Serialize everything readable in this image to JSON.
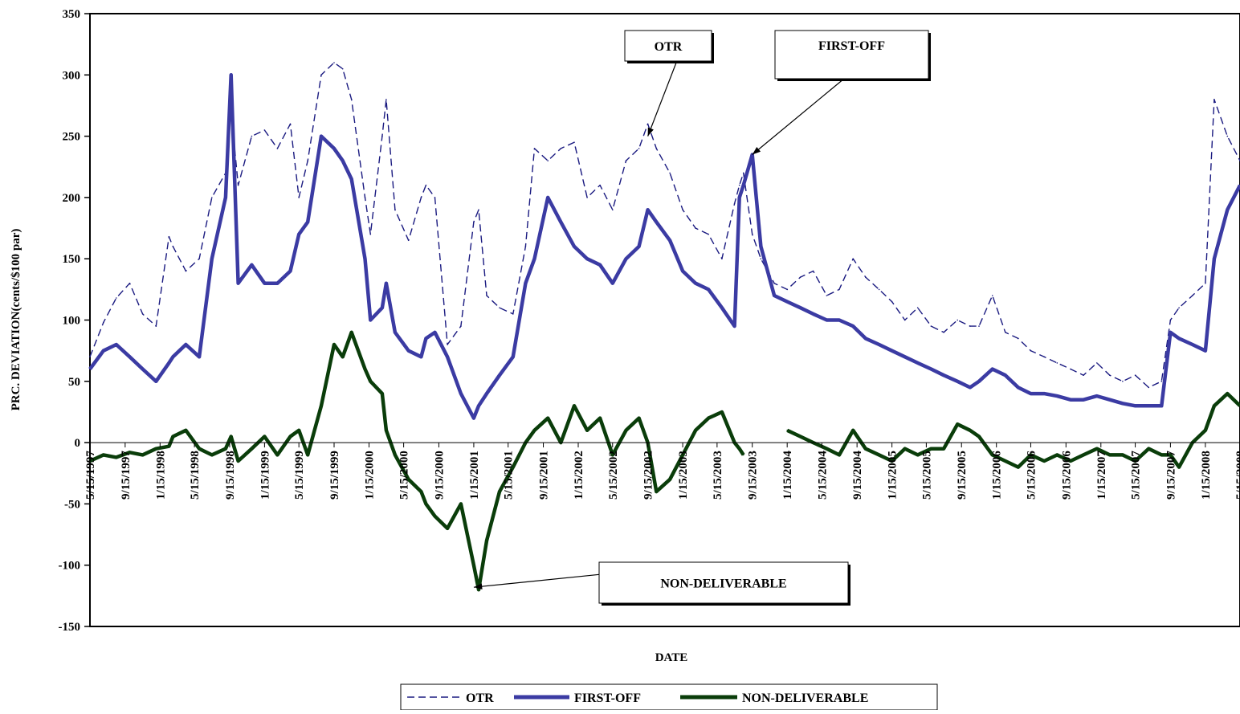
{
  "chart_data": {
    "type": "line",
    "title": "",
    "xlabel": "DATE",
    "ylabel": "PRC. DEVIATION(cents/$100 par)",
    "ylim": [
      -150,
      350
    ],
    "yticks": [
      350,
      300,
      250,
      200,
      150,
      100,
      50,
      0,
      -50,
      -100,
      -150
    ],
    "x_start": "5/15/1997",
    "x_end": "5/15/2008",
    "xtick_labels": [
      "5/15/1997",
      "9/15/1997",
      "1/15/1998",
      "5/15/1998",
      "9/15/1998",
      "1/15/1999",
      "5/15/1999",
      "9/15/1999",
      "1/15/2000",
      "5/15/2000",
      "9/15/2000",
      "1/15/2001",
      "5/15/2001",
      "9/15/2001",
      "1/15/2002",
      "5/15/2002",
      "9/15/2002",
      "1/15/2003",
      "5/15/2003",
      "9/15/2003",
      "1/15/2004",
      "5/15/2004",
      "9/15/2004",
      "1/15/2005",
      "5/15/2005",
      "9/15/2005",
      "1/15/2006",
      "5/15/2006",
      "9/15/2006",
      "1/15/2007",
      "5/15/2007",
      "9/15/2007",
      "1/15/2008",
      "5/15/2008"
    ],
    "grid": false,
    "legend_position": "bottom",
    "series": [
      {
        "name": "OTR",
        "style": "dashed",
        "color": "#1a1a80",
        "x": [
          "5/15/1997",
          "7/1/1997",
          "8/15/1997",
          "10/1/1997",
          "11/15/1997",
          "1/1/1998",
          "2/15/1998",
          "3/1/1998",
          "4/15/1998",
          "6/1/1998",
          "7/15/1998",
          "9/1/1998",
          "9/20/1998",
          "10/15/1998",
          "12/1/1998",
          "1/15/1999",
          "3/1/1999",
          "4/15/1999",
          "5/15/1999",
          "6/15/1999",
          "8/1/1999",
          "9/15/1999",
          "10/15/1999",
          "11/15/1999",
          "1/1/2000",
          "1/20/2000",
          "3/1/2000",
          "3/15/2000",
          "4/15/2000",
          "6/1/2000",
          "7/15/2000",
          "8/1/2000",
          "9/1/2000",
          "10/15/2000",
          "12/1/2000",
          "1/15/2001",
          "2/1/2001",
          "3/1/2001",
          "4/15/2001",
          "6/1/2001",
          "7/15/2001",
          "8/15/2001",
          "10/1/2001",
          "11/15/2001",
          "1/1/2002",
          "2/15/2002",
          "4/1/2002",
          "5/15/2002",
          "7/1/2002",
          "8/15/2002",
          "9/15/2002",
          "10/15/2002",
          "12/1/2002",
          "1/15/2003",
          "3/1/2003",
          "4/15/2003",
          "6/1/2003",
          "7/15/2003",
          "8/1/2003",
          "8/15/2003",
          "9/15/2003",
          "10/15/2003",
          "12/1/2003",
          "1/15/2004",
          "3/1/2004",
          "4/15/2004",
          "6/1/2004",
          "7/15/2004",
          "9/1/2004",
          "10/15/2004",
          "12/1/2004",
          "1/15/2005",
          "3/1/2005",
          "4/15/2005",
          "6/1/2005",
          "7/15/2005",
          "9/1/2005",
          "10/15/2005",
          "11/15/2005",
          "1/1/2006",
          "2/15/2006",
          "4/1/2006",
          "5/15/2006",
          "7/1/2006",
          "8/15/2006",
          "10/1/2006",
          "11/15/2006",
          "1/1/2007",
          "2/15/2007",
          "4/1/2007",
          "5/15/2007",
          "7/1/2007",
          "8/15/2007",
          "9/15/2007",
          "10/15/2007",
          "12/1/2007",
          "1/15/2008",
          "2/15/2008",
          "4/1/2008",
          "5/15/2008"
        ],
        "values": [
          70,
          98,
          118,
          130,
          105,
          95,
          168,
          160,
          140,
          150,
          200,
          220,
          270,
          210,
          250,
          255,
          240,
          260,
          200,
          230,
          300,
          310,
          305,
          280,
          200,
          170,
          250,
          280,
          190,
          165,
          200,
          210,
          200,
          80,
          95,
          180,
          190,
          120,
          110,
          105,
          160,
          240,
          230,
          240,
          245,
          200,
          210,
          190,
          230,
          240,
          260,
          240,
          220,
          190,
          175,
          170,
          150,
          195,
          210,
          220,
          170,
          150,
          130,
          125,
          135,
          140,
          120,
          125,
          150,
          135,
          125,
          115,
          100,
          110,
          95,
          90,
          100,
          95,
          95,
          120,
          90,
          85,
          75,
          70,
          65,
          60,
          55,
          65,
          55,
          50,
          55,
          45,
          50,
          100,
          110,
          120,
          130,
          280,
          250,
          230
        ]
      },
      {
        "name": "FIRST-OFF",
        "style": "solid",
        "color": "#3b3ba3",
        "x": [
          "5/15/1997",
          "7/1/1997",
          "8/15/1997",
          "10/1/1997",
          "11/15/1997",
          "1/1/1998",
          "2/15/1998",
          "3/1/1998",
          "4/15/1998",
          "6/1/1998",
          "7/15/1998",
          "9/1/1998",
          "9/20/1998",
          "10/15/1998",
          "12/1/1998",
          "1/15/1999",
          "3/1/1999",
          "4/15/1999",
          "5/15/1999",
          "6/15/1999",
          "8/1/1999",
          "9/15/1999",
          "10/15/1999",
          "11/15/1999",
          "1/1/2000",
          "1/20/2000",
          "3/1/2000",
          "3/15/2000",
          "4/15/2000",
          "6/1/2000",
          "7/15/2000",
          "8/1/2000",
          "9/1/2000",
          "10/15/2000",
          "12/1/2000",
          "1/15/2001",
          "2/1/2001",
          "3/1/2001",
          "4/15/2001",
          "6/1/2001",
          "7/15/2001",
          "8/15/2001",
          "10/1/2001",
          "11/15/2001",
          "1/1/2002",
          "2/15/2002",
          "4/1/2002",
          "5/15/2002",
          "7/1/2002",
          "8/15/2002",
          "9/15/2002",
          "10/15/2002",
          "12/1/2002",
          "1/15/2003",
          "3/1/2003",
          "4/15/2003",
          "6/1/2003",
          "7/15/2003",
          "8/1/2003",
          "8/15/2003",
          "9/15/2003",
          "10/15/2003",
          "12/1/2003",
          "1/15/2004",
          "3/1/2004",
          "4/15/2004",
          "6/1/2004",
          "7/15/2004",
          "9/1/2004",
          "10/15/2004",
          "12/1/2004",
          "1/15/2005",
          "3/1/2005",
          "4/15/2005",
          "6/1/2005",
          "7/15/2005",
          "9/1/2005",
          "10/15/2005",
          "11/15/2005",
          "1/1/2006",
          "2/15/2006",
          "4/1/2006",
          "5/15/2006",
          "7/1/2006",
          "8/15/2006",
          "10/1/2006",
          "11/15/2006",
          "1/1/2007",
          "2/15/2007",
          "4/1/2007",
          "5/15/2007",
          "7/1/2007",
          "8/15/2007",
          "9/15/2007",
          "10/15/2007",
          "12/1/2007",
          "1/15/2008",
          "2/15/2008",
          "4/1/2008",
          "5/15/2008"
        ],
        "values": [
          60,
          75,
          80,
          70,
          60,
          50,
          65,
          70,
          80,
          70,
          150,
          200,
          300,
          130,
          145,
          130,
          130,
          140,
          170,
          180,
          250,
          240,
          230,
          215,
          150,
          100,
          110,
          130,
          90,
          75,
          70,
          85,
          90,
          70,
          40,
          20,
          30,
          40,
          55,
          70,
          130,
          150,
          200,
          180,
          160,
          150,
          145,
          130,
          150,
          160,
          190,
          180,
          165,
          140,
          130,
          125,
          110,
          95,
          200,
          210,
          235,
          160,
          120,
          115,
          110,
          105,
          100,
          100,
          95,
          85,
          80,
          75,
          70,
          65,
          60,
          55,
          50,
          45,
          50,
          60,
          55,
          45,
          40,
          40,
          38,
          35,
          35,
          38,
          35,
          32,
          30,
          30,
          30,
          90,
          85,
          80,
          75,
          150,
          190,
          210
        ]
      },
      {
        "name": "NON-DELIVERABLE",
        "style": "solid",
        "color": "#0a3d0a",
        "x": [
          "5/15/1997",
          "7/1/1997",
          "8/15/1997",
          "10/1/1997",
          "11/15/1997",
          "1/1/1998",
          "2/15/1998",
          "3/1/1998",
          "4/15/1998",
          "6/1/1998",
          "7/15/1998",
          "9/1/1998",
          "9/20/1998",
          "10/15/1998",
          "12/1/1998",
          "1/15/1999",
          "3/1/1999",
          "4/15/1999",
          "5/15/1999",
          "6/15/1999",
          "8/1/1999",
          "9/15/1999",
          "10/15/1999",
          "11/15/1999",
          "1/1/2000",
          "1/20/2000",
          "3/1/2000",
          "3/15/2000",
          "4/15/2000",
          "6/1/2000",
          "7/15/2000",
          "8/1/2000",
          "9/1/2000",
          "10/15/2000",
          "12/1/2000",
          "1/15/2001",
          "2/1/2001",
          "3/1/2001",
          "4/15/2001",
          "6/1/2001",
          "7/15/2001",
          "8/15/2001",
          "10/1/2001",
          "11/15/2001",
          "1/1/2002",
          "2/15/2002",
          "4/1/2002",
          "5/15/2002",
          "7/1/2002",
          "8/15/2002",
          "9/15/2002",
          "10/15/2002",
          "12/1/2002",
          "1/15/2003",
          "3/1/2003",
          "4/15/2003",
          "6/1/2003",
          "7/15/2003",
          "8/1/2003",
          "8/15/2003",
          "9/15/2003",
          "10/15/2003",
          "12/1/2003",
          "1/15/2004",
          "3/1/2004",
          "4/15/2004",
          "6/1/2004",
          "7/15/2004",
          "9/1/2004",
          "10/15/2004",
          "12/1/2004",
          "1/15/2005",
          "3/1/2005",
          "4/15/2005",
          "6/1/2005",
          "7/15/2005",
          "9/1/2005",
          "10/15/2005",
          "11/15/2005",
          "1/1/2006",
          "2/15/2006",
          "4/1/2006",
          "5/15/2006",
          "7/1/2006",
          "8/15/2006",
          "10/1/2006",
          "11/15/2006",
          "1/1/2007",
          "2/15/2007",
          "4/1/2007",
          "5/15/2007",
          "7/1/2007",
          "8/15/2007",
          "9/15/2007",
          "10/15/2007",
          "12/1/2007",
          "1/15/2008",
          "2/15/2008",
          "4/1/2008",
          "5/15/2008"
        ],
        "values": [
          -15,
          -10,
          -12,
          -8,
          -10,
          -5,
          -3,
          5,
          10,
          -5,
          -10,
          -5,
          5,
          -15,
          -5,
          5,
          -10,
          5,
          10,
          -10,
          30,
          80,
          70,
          90,
          60,
          50,
          40,
          10,
          -10,
          -30,
          -40,
          -50,
          -60,
          -70,
          -50,
          -100,
          -120,
          -80,
          -40,
          -20,
          0,
          10,
          20,
          0,
          30,
          10,
          20,
          -10,
          10,
          20,
          0,
          -40,
          -30,
          -10,
          10,
          20,
          25,
          0,
          -5,
          -10,
          null,
          null,
          null,
          10,
          5,
          0,
          -5,
          -10,
          10,
          -5,
          -10,
          -15,
          -5,
          -10,
          -5,
          -5,
          15,
          10,
          5,
          -10,
          -15,
          -20,
          -10,
          -15,
          -10,
          -15,
          -10,
          -5,
          -10,
          -10,
          -15,
          -5,
          -10,
          -10,
          -20,
          0,
          10,
          30,
          40,
          30
        ]
      }
    ],
    "annotations": [
      {
        "text": "OTR",
        "points_to": {
          "x": "9/15/2002",
          "y": 250
        }
      },
      {
        "text": "FIRST-OFF",
        "points_to": {
          "x": "9/15/2003",
          "y": 235
        }
      },
      {
        "text": "NON-DELIVERABLE",
        "points_to": {
          "x": "1/15/2001",
          "y": -118
        }
      }
    ]
  }
}
